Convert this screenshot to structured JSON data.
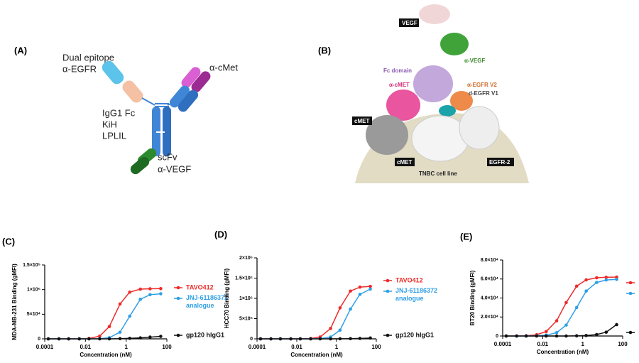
{
  "panels": {
    "a": "(A)",
    "b": "(B)"
  },
  "diagram_a": {
    "labels": [
      "Dual epitope",
      "α-EGFR",
      "α-cMet",
      "IgG1 Fc",
      "KiH",
      "LPLIL",
      "scFv",
      "α-VEGF"
    ]
  },
  "diagram_b": {
    "labels": [
      "VEGF",
      "α-VEGF",
      "Fc domain",
      "α-cMET",
      "α-EGFR V2",
      "d-EGFR V1",
      "cMET",
      "cMET",
      "EGFR-2",
      "TNBC cell line"
    ]
  },
  "chart_data": [
    {
      "type": "line",
      "panel": "(C)",
      "x_label": "Concentration (nM)",
      "y_label": "MDA-MB-231 Binding (gMFI)",
      "log_x": true,
      "x": [
        0.00015,
        0.0005,
        0.0015,
        0.005,
        0.015,
        0.05,
        0.15,
        0.5,
        1.5,
        5,
        15,
        50
      ],
      "xlim": [
        0.0001,
        100
      ],
      "xticks": [
        0.0001,
        0.01,
        1,
        100
      ],
      "ylim": [
        0,
        150000
      ],
      "yticks": [
        0,
        {
          "value": 50000,
          "label": "5×10⁴"
        },
        {
          "value": 100000,
          "label": "1×10⁵"
        },
        {
          "value": 150000,
          "label": "1.5×10⁵"
        }
      ],
      "series": [
        {
          "name": "TAVO412",
          "color": "#ee2a2a",
          "values": [
            0,
            0,
            0,
            0,
            840,
            5500,
            25000,
            70800,
            94800,
            100900,
            101700,
            102000
          ]
        },
        {
          "name": "JNJ-61186372 analogue",
          "color": "#2e9fe6",
          "values": [
            0,
            0,
            0,
            0,
            0,
            400,
            2250,
            13500,
            46000,
            80300,
            89700,
            91500
          ]
        },
        {
          "name": "gp120 hIgG1",
          "color": "#111111",
          "values": [
            0,
            0,
            0,
            0,
            0,
            0,
            0,
            500,
            1000,
            2000,
            3500,
            5000
          ]
        }
      ]
    },
    {
      "type": "line",
      "panel": "(D)",
      "x_label": "Concentration (nM)",
      "y_label": "HCC70 Binding (gMFI)",
      "log_x": true,
      "x": [
        0.00015,
        0.0005,
        0.0015,
        0.005,
        0.015,
        0.05,
        0.15,
        0.5,
        1.5,
        5,
        15,
        50
      ],
      "xlim": [
        0.0001,
        100
      ],
      "xticks": [
        0.0001,
        0.01,
        1,
        100
      ],
      "ylim": [
        0,
        2000000
      ],
      "yticks": [
        0,
        {
          "value": 500000,
          "label": "5×10⁵"
        },
        {
          "value": 1000000,
          "label": "1×10⁶"
        },
        {
          "value": 1500000,
          "label": "1.5×10⁶"
        },
        {
          "value": 2000000,
          "label": "2×10⁶"
        }
      ],
      "series": [
        {
          "name": "TAVO412",
          "color": "#ee2a2a",
          "values": [
            0,
            0,
            0,
            0,
            0,
            8000,
            45000,
            257000,
            765000,
            1180000,
            1278000,
            1296000
          ]
        },
        {
          "name": "JNJ-61186372 analogue",
          "color": "#2e9fe6",
          "values": [
            0,
            0,
            0,
            0,
            0,
            0,
            6500,
            43000,
            215000,
            735000,
            1098000,
            1228000
          ]
        },
        {
          "name": "gp120 hIgG1",
          "color": "#111111",
          "values": [
            0,
            0,
            0,
            0,
            0,
            0,
            0,
            0,
            2000,
            5000,
            10000,
            20000
          ]
        }
      ]
    },
    {
      "type": "line",
      "panel": "(E)",
      "x_label": "Concentration (nM)",
      "y_label": "BT20 Binding (gMFI)",
      "log_x": true,
      "x": [
        0.00015,
        0.0005,
        0.0015,
        0.005,
        0.015,
        0.05,
        0.15,
        0.5,
        1.5,
        5,
        15,
        50
      ],
      "xlim": [
        0.0001,
        100
      ],
      "xticks": [
        0.0001,
        0.01,
        1,
        100
      ],
      "ylim": [
        0,
        80000
      ],
      "yticks": [
        0,
        {
          "value": 20000,
          "label": "2.0×10⁴"
        },
        {
          "value": 40000,
          "label": "4.0×10⁴"
        },
        {
          "value": 60000,
          "label": "6.0×10⁴"
        },
        {
          "value": 80000,
          "label": "8.0×10⁴"
        }
      ],
      "series": [
        {
          "color": "#ee2a2a",
          "values": [
            20,
            90,
            320,
            1330,
            4700,
            16000,
            35200,
            52500,
            59100,
            61300,
            61800,
            62000
          ]
        },
        {
          "color": "#2e9fe6",
          "values": [
            0,
            0,
            60,
            240,
            890,
            3550,
            11500,
            30000,
            47300,
            56400,
            59000,
            59600
          ]
        },
        {
          "color": "#111111",
          "values": [
            0,
            0,
            0,
            0,
            0,
            0,
            0,
            200,
            500,
            1500,
            4000,
            12000
          ]
        }
      ]
    }
  ]
}
